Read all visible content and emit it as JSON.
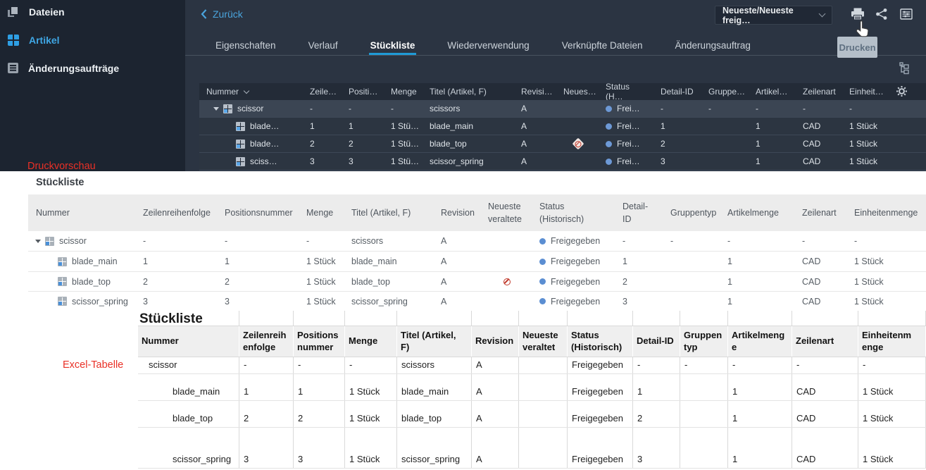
{
  "colors": {
    "accent_blue": "#2f9fe3",
    "tab_underline": "#1f9ad6",
    "status_dot": "#5b8ed2",
    "outdated_red": "#c0392b",
    "annotation_red": "#e93026"
  },
  "annotations": {
    "print_preview": "Druckvorschau",
    "excel": "Excel-Tabelle"
  },
  "sidebar": {
    "items": [
      {
        "label": "Dateien",
        "icon": "files-icon",
        "active": false
      },
      {
        "label": "Artikel",
        "icon": "items-grid-icon",
        "active": true
      },
      {
        "label": "Änderungsaufträge",
        "icon": "change-orders-icon",
        "active": false
      }
    ]
  },
  "toolbar": {
    "back_label": "Zurück",
    "revision_rule": "Neueste/Neueste freig…",
    "print_tooltip": "Drucken",
    "icons": [
      "printer-icon",
      "share-icon",
      "display-options-icon"
    ]
  },
  "tabs": {
    "active": "Stückliste",
    "items": [
      "Eigenschaften",
      "Verlauf",
      "Stückliste",
      "Wiederverwendung",
      "Verknüpfte Dateien",
      "Änderungsauftrag"
    ]
  },
  "bom_table": {
    "columns": [
      "Nummer",
      "Zeile…",
      "Positi…",
      "Menge",
      "Titel (Artikel, F)",
      "Revisi…",
      "Neues…",
      "Status (H…",
      "Detail-ID",
      "Gruppe…",
      "Artikel…",
      "Zeilenart",
      "Einheit…"
    ],
    "rows": [
      {
        "level": 0,
        "expander": true,
        "nummer": "scissor",
        "zeile": "-",
        "position": "-",
        "menge": "-",
        "titel": "scissors",
        "revision": "A",
        "outdated": false,
        "status": "Frei…",
        "detail_id": "-",
        "gruppentyp": "-",
        "artikelmenge": "-",
        "zeilenart": "-",
        "einheitenmenge": "-"
      },
      {
        "level": 1,
        "expander": false,
        "nummer": "blade…",
        "zeile": "1",
        "position": "1",
        "menge": "1 Stü…",
        "titel": "blade_main",
        "revision": "A",
        "outdated": false,
        "status": "Frei…",
        "detail_id": "1",
        "gruppentyp": "",
        "artikelmenge": "1",
        "zeilenart": "CAD",
        "einheitenmenge": "1 Stück"
      },
      {
        "level": 1,
        "expander": false,
        "nummer": "blade…",
        "zeile": "2",
        "position": "2",
        "menge": "1 Stü…",
        "titel": "blade_top",
        "revision": "A",
        "outdated": true,
        "status": "Frei…",
        "detail_id": "2",
        "gruppentyp": "",
        "artikelmenge": "1",
        "zeilenart": "CAD",
        "einheitenmenge": "1 Stück"
      },
      {
        "level": 1,
        "expander": false,
        "nummer": "sciss…",
        "zeile": "3",
        "position": "3",
        "menge": "1 Stü…",
        "titel": "scissor_spring",
        "revision": "A",
        "outdated": false,
        "status": "Frei…",
        "detail_id": "3",
        "gruppentyp": "",
        "artikelmenge": "1",
        "zeilenart": "CAD",
        "einheitenmenge": "1 Stück"
      }
    ]
  },
  "print_preview": {
    "title": "Stückliste",
    "columns": [
      "Nummer",
      "Zeilenreihenfolge",
      "Positionsnummer",
      "Menge",
      "Titel (Artikel, F)",
      "Revision",
      "Neueste\nveraltete",
      "Status\n(Historisch)",
      "Detail-\nID",
      "Gruppentyp",
      "Artikelmenge",
      "Zeilenart",
      "Einheitenmenge"
    ],
    "rows": [
      {
        "level": 0,
        "expander": true,
        "nummer": "scissor",
        "zeile": "-",
        "position": "-",
        "menge": "-",
        "titel": "scissors",
        "revision": "A",
        "outdated": false,
        "status": "Freigegeben",
        "detail_id": "-",
        "gruppentyp": "-",
        "artikelmenge": "-",
        "zeilenart": "-",
        "einheitenmenge": "-"
      },
      {
        "level": 1,
        "expander": false,
        "nummer": "blade_main",
        "zeile": "1",
        "position": "1",
        "menge": "1 Stück",
        "titel": "blade_main",
        "revision": "A",
        "outdated": false,
        "status": "Freigegeben",
        "detail_id": "1",
        "gruppentyp": "",
        "artikelmenge": "1",
        "zeilenart": "CAD",
        "einheitenmenge": "1 Stück"
      },
      {
        "level": 1,
        "expander": false,
        "nummer": "blade_top",
        "zeile": "2",
        "position": "2",
        "menge": "1 Stück",
        "titel": "blade_top",
        "revision": "A",
        "outdated": true,
        "status": "Freigegeben",
        "detail_id": "2",
        "gruppentyp": "",
        "artikelmenge": "1",
        "zeilenart": "CAD",
        "einheitenmenge": "1 Stück"
      },
      {
        "level": 1,
        "expander": false,
        "nummer": "scissor_spring",
        "zeile": "3",
        "position": "3",
        "menge": "1 Stück",
        "titel": "scissor_spring",
        "revision": "A",
        "outdated": false,
        "status": "Freigegeben",
        "detail_id": "3",
        "gruppentyp": "",
        "artikelmenge": "1",
        "zeilenart": "CAD",
        "einheitenmenge": "1 Stück"
      }
    ]
  },
  "excel": {
    "title": "Stückliste",
    "columns": [
      "Nummer",
      "Zeilenreih\nenfolge",
      "Positions\nnummer",
      "Menge",
      "Titel (Artikel,\nF)",
      "Revision",
      "Neueste\nveraltet",
      "Status\n(Historisch)",
      "Detail-ID",
      "Gruppen\ntyp",
      "Artikelmeng\ne",
      "Zeilenart",
      "Einheitenm\nenge"
    ],
    "rows": [
      {
        "level": 0,
        "expander": false,
        "nummer": "scissor",
        "zeile": "-",
        "position": "-",
        "menge": "-",
        "titel": "scissors",
        "revision": "A",
        "outdated": false,
        "status": "Freigegeben",
        "detail_id": "-",
        "gruppentyp": "-",
        "artikelmenge": "-",
        "zeilenart": "-",
        "einheitenmenge": "-"
      },
      {
        "level": 1,
        "expander": false,
        "nummer": "blade_main",
        "zeile": "1",
        "position": "1",
        "menge": "1 Stück",
        "titel": "blade_main",
        "revision": "A",
        "outdated": false,
        "status": "Freigegeben",
        "detail_id": "1",
        "gruppentyp": "",
        "artikelmenge": "1",
        "zeilenart": "CAD",
        "einheitenmenge": "1 Stück"
      },
      {
        "level": 1,
        "expander": false,
        "nummer": "blade_top",
        "zeile": "2",
        "position": "2",
        "menge": "1 Stück",
        "titel": "blade_top",
        "revision": "A",
        "outdated": false,
        "status": "Freigegeben",
        "detail_id": "2",
        "gruppentyp": "",
        "artikelmenge": "1",
        "zeilenart": "CAD",
        "einheitenmenge": "1 Stück"
      },
      {
        "level": 1,
        "expander": false,
        "nummer": "scissor_spring",
        "zeile": "3",
        "position": "3",
        "menge": "1 Stück",
        "titel": "scissor_spring",
        "revision": "A",
        "outdated": false,
        "status": "Freigegeben",
        "detail_id": "3",
        "gruppentyp": "",
        "artikelmenge": "1",
        "zeilenart": "CAD",
        "einheitenmenge": "1 Stück"
      }
    ]
  }
}
